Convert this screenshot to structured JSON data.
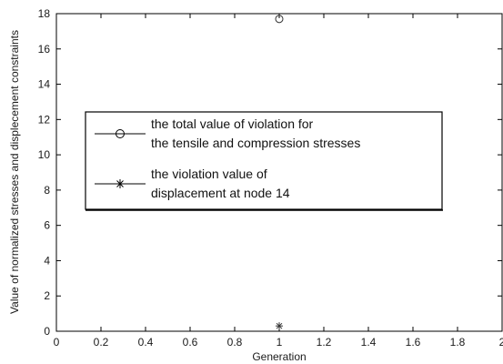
{
  "chart_data": {
    "type": "scatter",
    "title": "",
    "xlabel": "Generation",
    "ylabel": "Value of normalized stresses and displecement constraints",
    "xlim": [
      0,
      2
    ],
    "ylim": [
      0,
      18
    ],
    "x_ticks": [
      "0",
      "0.2",
      "0.4",
      "0.6",
      "0.8",
      "1",
      "1.2",
      "1.4",
      "1.6",
      "1.8",
      "2"
    ],
    "y_ticks": [
      "0",
      "2",
      "4",
      "6",
      "8",
      "10",
      "12",
      "14",
      "16",
      "18"
    ],
    "grid": false,
    "legend_position": "center-left",
    "series": [
      {
        "name_lines": [
          "the total value of violation for",
          "the tensile and compression stresses"
        ],
        "marker": "circle",
        "points": [
          {
            "x": 1,
            "y": 17.7
          }
        ]
      },
      {
        "name_lines": [
          "the violation value of",
          "displacement at node 14"
        ],
        "marker": "star",
        "points": [
          {
            "x": 1,
            "y": 0.3
          }
        ]
      }
    ]
  }
}
